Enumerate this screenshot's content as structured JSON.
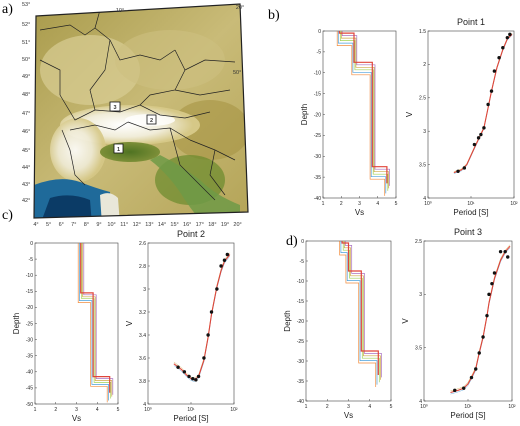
{
  "panel_labels": [
    "a)",
    "b)",
    "c)",
    "d)"
  ],
  "map": {
    "lat_labels": [
      "53°",
      "52°",
      "51°",
      "50°",
      "49°",
      "48°",
      "47°",
      "46°",
      "45°",
      "44°",
      "43°",
      "42°"
    ],
    "lon_labels": [
      "4°",
      "5°",
      "6°",
      "7°",
      "8°",
      "9°",
      "10°",
      "11°",
      "12°",
      "13°",
      "14°",
      "15°",
      "16°",
      "17°",
      "18°",
      "19°",
      "20°"
    ],
    "top_labels": [
      "10°",
      "20°"
    ],
    "right_label": "50°",
    "markers": [
      "3",
      "2",
      "1"
    ],
    "colors": {
      "sea": "#0e4f7a",
      "lowland": "#c8b878",
      "hills": "#b8a84e",
      "alps": "#ffffff",
      "plain": "#587a28"
    }
  },
  "chart_data": [
    {
      "id": "b-vs",
      "type": "line",
      "xlabel": "Vs",
      "ylabel": "Depth",
      "xlim": [
        1,
        5
      ],
      "ylim": [
        -40,
        0
      ],
      "xticks": [
        "1",
        "2",
        "3",
        "4",
        "5"
      ],
      "yticks": [
        "0",
        "-5",
        "-10",
        "-15",
        "-20",
        "-25",
        "-30",
        "-35",
        "-40"
      ],
      "series_colors": [
        "#f07a1e",
        "#2c8fd6",
        "#8fcb3a",
        "#c79a26",
        "#9b59b6",
        "#e0453a"
      ],
      "model": {
        "depth": [
          0,
          -2,
          -2,
          -9,
          -9,
          -34,
          -34,
          -38
        ],
        "vs": [
          1.9,
          1.9,
          2.7,
          2.7,
          3.7,
          3.7,
          4.5,
          4.5
        ]
      }
    },
    {
      "id": "b-disp",
      "type": "line",
      "title": "Point 1",
      "xlabel": "Period [S]",
      "ylabel": "V",
      "xscale": "log",
      "xlim": [
        1,
        100
      ],
      "ylim": [
        1.5,
        4
      ],
      "xticks": [
        "10⁰",
        "10¹",
        "10²"
      ],
      "yticks": [
        "1.5",
        "2",
        "2.5",
        "3",
        "3.5",
        "4"
      ],
      "points": {
        "x": [
          5,
          7,
          12,
          15,
          17,
          20,
          25,
          30,
          35,
          45,
          55,
          70,
          80
        ],
        "y": [
          1.9,
          1.95,
          2.3,
          2.4,
          2.45,
          2.55,
          2.9,
          3.1,
          3.4,
          3.6,
          3.75,
          3.9,
          3.95
        ]
      },
      "curve": {
        "x": [
          4,
          6,
          8,
          12,
          16,
          20,
          25,
          30,
          40,
          55,
          70,
          90
        ],
        "y": [
          1.88,
          1.92,
          2.0,
          2.25,
          2.42,
          2.55,
          2.85,
          3.1,
          3.45,
          3.72,
          3.88,
          3.95
        ]
      }
    },
    {
      "id": "c-vs",
      "type": "line",
      "xlabel": "Vs",
      "ylabel": "Depth",
      "xlim": [
        1,
        5
      ],
      "ylim": [
        -50,
        0
      ],
      "xticks": [
        "1",
        "2",
        "3",
        "4",
        "5"
      ],
      "yticks": [
        "0",
        "-5",
        "-10",
        "-15",
        "-20",
        "-25",
        "-30",
        "-35",
        "-40",
        "-45",
        "-50"
      ],
      "series_colors": [
        "#f07a1e",
        "#2c8fd6",
        "#8fcb3a",
        "#c79a26",
        "#9b59b6",
        "#e0453a"
      ],
      "model": {
        "depth": [
          0,
          -17,
          -17,
          -43,
          -43,
          -48
        ],
        "vs": [
          3.2,
          3.2,
          3.8,
          3.8,
          4.6,
          4.6
        ]
      }
    },
    {
      "id": "c-disp",
      "type": "line",
      "title": "Point 2",
      "xlabel": "Period [S]",
      "ylabel": "V",
      "xscale": "log",
      "xlim": [
        1,
        100
      ],
      "ylim": [
        2.6,
        4
      ],
      "xticks": [
        "10⁰",
        "10¹",
        "10²"
      ],
      "yticks": [
        "2.6",
        "2.8",
        "3",
        "3.2",
        "3.4",
        "3.6",
        "3.8",
        "4"
      ],
      "points": {
        "x": [
          5,
          7,
          9,
          11,
          13,
          15,
          20,
          25,
          30,
          40,
          50,
          60,
          70
        ],
        "y": [
          2.92,
          2.88,
          2.84,
          2.82,
          2.81,
          2.84,
          3.0,
          3.2,
          3.4,
          3.6,
          3.8,
          3.85,
          3.9
        ]
      },
      "curve": {
        "x": [
          4,
          6,
          8,
          10,
          12,
          15,
          20,
          25,
          30,
          40,
          50,
          60,
          80
        ],
        "y": [
          2.95,
          2.9,
          2.85,
          2.82,
          2.81,
          2.84,
          2.98,
          3.18,
          3.38,
          3.62,
          3.76,
          3.84,
          3.9
        ]
      }
    },
    {
      "id": "d-vs",
      "type": "line",
      "xlabel": "Vs",
      "ylabel": "Depth",
      "xlim": [
        1,
        5
      ],
      "ylim": [
        -40,
        0
      ],
      "xticks": [
        "1",
        "2",
        "3",
        "4",
        "5"
      ],
      "yticks": [
        "0",
        "-5",
        "-10",
        "-15",
        "-20",
        "-25",
        "-30",
        "-35",
        "-40"
      ],
      "series_colors": [
        "#f07a1e",
        "#2c8fd6",
        "#8fcb3a",
        "#c79a26",
        "#9b59b6",
        "#e0453a"
      ],
      "model": {
        "depth": [
          0,
          -2,
          -2,
          -9,
          -9,
          -29,
          -29,
          -35
        ],
        "vs": [
          2.7,
          2.7,
          3.0,
          3.0,
          3.6,
          3.6,
          4.4,
          4.4
        ]
      }
    },
    {
      "id": "d-disp",
      "type": "line",
      "title": "Point 3",
      "xlabel": "Period [S]",
      "ylabel": "V",
      "xscale": "log",
      "xlim": [
        1,
        100
      ],
      "ylim": [
        2.5,
        4
      ],
      "xticks": [
        "10⁰",
        "10¹",
        "10²"
      ],
      "yticks": [
        "2.5",
        "3",
        "3.5",
        "4"
      ],
      "points": {
        "x": [
          5,
          8,
          12,
          15,
          18,
          22,
          27,
          30,
          35,
          40,
          55,
          70,
          80
        ],
        "y": [
          2.6,
          2.62,
          2.72,
          2.8,
          2.95,
          3.1,
          3.3,
          3.5,
          3.6,
          3.7,
          3.9,
          3.9,
          3.85
        ]
      },
      "curve": {
        "x": [
          4,
          6,
          8,
          10,
          12,
          15,
          18,
          22,
          27,
          30,
          40,
          55,
          70,
          90
        ],
        "y": [
          2.58,
          2.6,
          2.62,
          2.66,
          2.72,
          2.8,
          2.95,
          3.1,
          3.3,
          3.42,
          3.65,
          3.82,
          3.9,
          3.95
        ]
      }
    }
  ]
}
